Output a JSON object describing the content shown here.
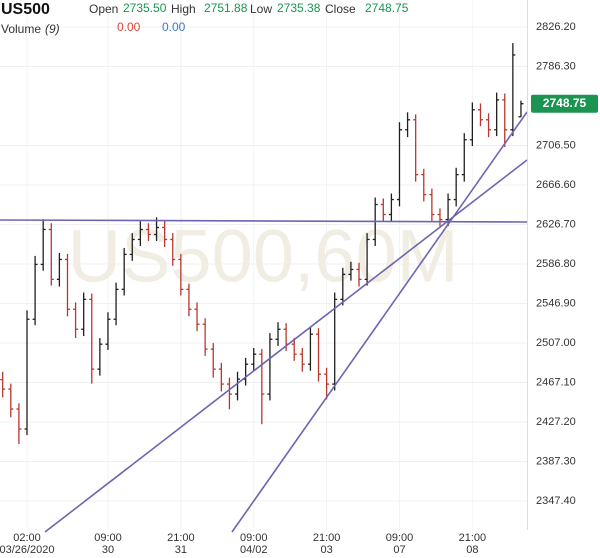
{
  "chart_data": {
    "type": "ohlc",
    "title": "US500",
    "watermark": "US500,60M",
    "header": {
      "open_label": "Open",
      "open_value": "2735.50",
      "high_label": "High",
      "high_value": "2751.88",
      "low_label": "Low",
      "low_value": "2735.38",
      "close_label": "Close",
      "close_value": "2748.75",
      "volume_label": "Volume",
      "volume_period": "(9)",
      "volume_value_1": "0.00",
      "volume_value_2": "0.00"
    },
    "last_price_label": "2748.75",
    "categories": [
      null,
      null,
      null,
      "02:00",
      null,
      null,
      null,
      null,
      null,
      null,
      null,
      null,
      null,
      "09:00",
      null,
      null,
      null,
      null,
      null,
      null,
      null,
      null,
      "21:00",
      null,
      null,
      null,
      null,
      null,
      null,
      null,
      null,
      "09:00",
      null,
      null,
      null,
      null,
      null,
      null,
      null,
      null,
      "21:00",
      null,
      null,
      null,
      null,
      null,
      null,
      null,
      null,
      "09:00",
      null,
      null,
      null,
      null,
      null,
      null,
      null,
      null,
      "21:00",
      null,
      null,
      null,
      null,
      null,
      null
    ],
    "category_sublabels": [
      null,
      null,
      null,
      "03/26/2020",
      null,
      null,
      null,
      null,
      null,
      null,
      null,
      null,
      null,
      "30",
      null,
      null,
      null,
      null,
      null,
      null,
      null,
      null,
      "31",
      null,
      null,
      null,
      null,
      null,
      null,
      null,
      null,
      "04/02",
      null,
      null,
      null,
      null,
      null,
      null,
      null,
      null,
      "03",
      null,
      null,
      null,
      null,
      null,
      null,
      null,
      null,
      "07",
      null,
      null,
      null,
      null,
      null,
      null,
      null,
      null,
      "08",
      null,
      null,
      null,
      null,
      null,
      null
    ],
    "open": [
      2470,
      2460.4,
      2440.3,
      2420.1,
      2531,
      2586.4,
      2621.7,
      2571.3,
      2591.4,
      2541.1,
      2520.9,
      2551.1,
      2480.6,
      2505.8,
      2531,
      2561.2,
      2596.5,
      2611.6,
      2621.7,
      2616.6,
      2623.7,
      2611.6,
      2591.4,
      2561.2,
      2541.1,
      2526,
      2500.8,
      2480.6,
      2465.5,
      2455.4,
      2470.5,
      2485.6,
      2495.7,
      2455.4,
      2510.8,
      2520.9,
      2505.8,
      2495.7,
      2485.6,
      2515.9,
      2475.5,
      2465.5,
      2551.1,
      2576.3,
      2581.3,
      2571.3,
      2611.6,
      2646.9,
      2636.8,
      2651.9,
      2722.4,
      2732.5,
      2677.1,
      2656.9,
      2636.8,
      2631.7,
      2651.9,
      2677.1,
      2712.3,
      2742.6,
      2732.5,
      2722.4,
      2752.6,
      2722.4,
      2735.5
    ],
    "high": [
      2478,
      2466,
      2446,
      2540,
      2595,
      2632,
      2628,
      2598,
      2597,
      2548,
      2558,
      2557,
      2512,
      2538,
      2568,
      2603,
      2618,
      2630,
      2628,
      2634,
      2630,
      2618,
      2597,
      2567,
      2548,
      2532,
      2507,
      2487,
      2472,
      2478,
      2492,
      2502,
      2501,
      2517,
      2528,
      2527,
      2512,
      2502,
      2523,
      2522,
      2482,
      2558,
      2583,
      2589,
      2588,
      2618,
      2654,
      2653,
      2658,
      2730,
      2740,
      2738,
      2683,
      2663,
      2643,
      2658,
      2684,
      2719,
      2750,
      2749,
      2739,
      2760,
      2759,
      2810,
      2751.88
    ],
    "low": [
      2452,
      2432,
      2405,
      2414,
      2525,
      2580,
      2565,
      2564,
      2534,
      2512,
      2514,
      2466,
      2474,
      2500,
      2525,
      2555,
      2590,
      2605,
      2610,
      2610,
      2604,
      2585,
      2555,
      2534,
      2519,
      2494,
      2472,
      2458,
      2440,
      2449,
      2464,
      2479,
      2425,
      2449,
      2504,
      2499,
      2489,
      2478,
      2479,
      2468,
      2450,
      2459,
      2545,
      2570,
      2564,
      2565,
      2605,
      2630,
      2630,
      2645,
      2715,
      2670,
      2650,
      2629,
      2625,
      2625,
      2645,
      2670,
      2706,
      2726,
      2715,
      2716,
      2705,
      2716,
      2735.38
    ],
    "close": [
      2460.4,
      2440.3,
      2420.1,
      2531,
      2586.4,
      2621.7,
      2571.3,
      2591.4,
      2541.1,
      2520.9,
      2551.1,
      2480.6,
      2505.8,
      2531,
      2561.2,
      2596.5,
      2611.6,
      2621.7,
      2616.6,
      2623.7,
      2611.6,
      2591.4,
      2561.2,
      2541.1,
      2526,
      2500.8,
      2480.6,
      2465.5,
      2455.4,
      2470.5,
      2485.6,
      2495.7,
      2455.4,
      2510.8,
      2520.9,
      2505.8,
      2495.7,
      2485.6,
      2515.9,
      2475.5,
      2465.5,
      2551.1,
      2576.3,
      2581.3,
      2571.3,
      2611.6,
      2646.9,
      2636.8,
      2651.9,
      2722.4,
      2732.5,
      2677.1,
      2656.9,
      2636.8,
      2631.7,
      2651.9,
      2677.1,
      2712.3,
      2742.6,
      2732.5,
      2722.4,
      2752.6,
      2722.4,
      2798,
      2748.75
    ],
    "up_color": "#1f1f1f",
    "down_color": "#b8372e",
    "last_price_color": "#1a9450",
    "ylim": [
      2318.1,
      2853.5
    ],
    "yticks": [
      {
        "value": 2826.2,
        "label": "2826.20"
      },
      {
        "value": 2786.3,
        "label": "2786.30"
      },
      {
        "value": 2706.5,
        "label": "2706.50"
      },
      {
        "value": 2666.6,
        "label": "2666.60"
      },
      {
        "value": 2626.7,
        "label": "2626.70"
      },
      {
        "value": 2586.8,
        "label": "2586.80"
      },
      {
        "value": 2546.9,
        "label": "2546.90"
      },
      {
        "value": 2507,
        "label": "2507.00"
      },
      {
        "value": 2467.1,
        "label": "2467.10"
      },
      {
        "value": 2427.2,
        "label": "2427.20"
      },
      {
        "value": 2387.3,
        "label": "2387.30"
      },
      {
        "value": 2347.4,
        "label": "2347.40"
      }
    ],
    "grid": true
  }
}
